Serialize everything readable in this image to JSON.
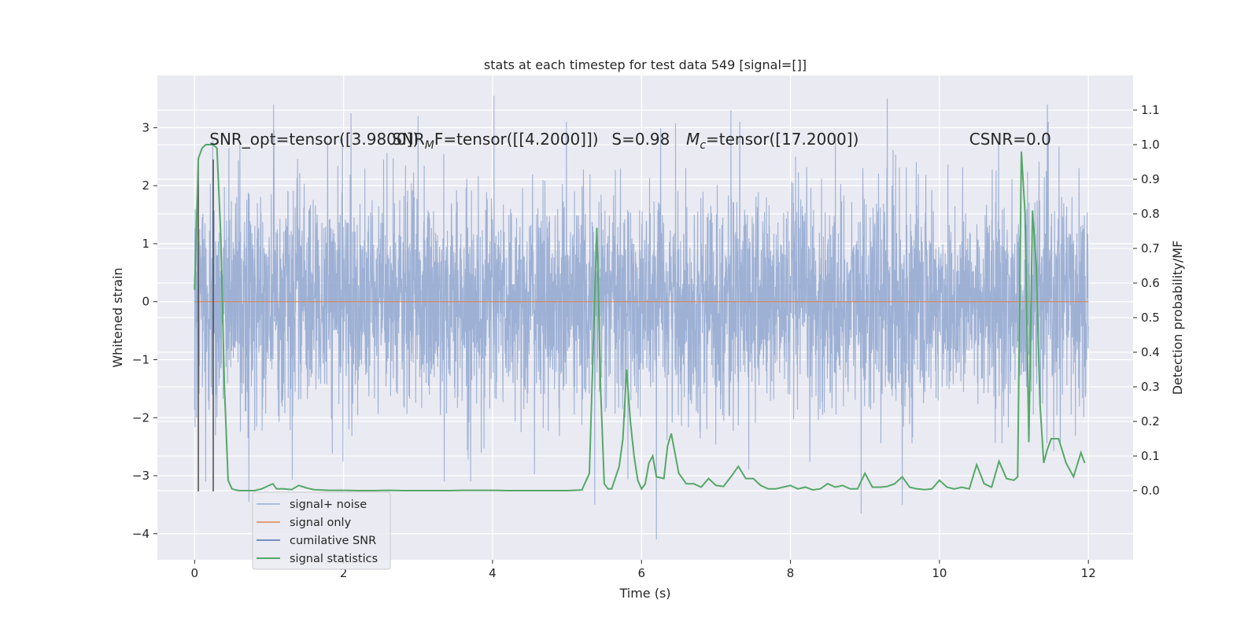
{
  "chart_data": {
    "type": "line",
    "title": "stats at each timestep for test data 549 [signal=[]]",
    "xlabel": "Time (s)",
    "ylabel": "Whitened strain",
    "y2label": "Detection probability/MF",
    "xlim": [
      -0.5,
      12.6
    ],
    "ylim": [
      -4.45,
      3.9
    ],
    "y2lim": [
      -0.2,
      1.2
    ],
    "grid": true,
    "x_ticks": [
      0,
      2,
      4,
      6,
      8,
      10,
      12
    ],
    "x_tick_labels": [
      "0",
      "2",
      "4",
      "6",
      "8",
      "10",
      "12"
    ],
    "y_ticks": [
      3,
      2,
      1,
      0,
      -1,
      -2,
      -3,
      -4
    ],
    "y_tick_labels": [
      "3",
      "2",
      "1",
      "0",
      "−1",
      "−2",
      "−3",
      "−4"
    ],
    "y2_ticks": [
      1.1,
      1.0,
      0.9,
      0.8,
      0.7,
      0.6,
      0.5,
      0.4,
      0.3,
      0.2,
      0.1,
      0.0
    ],
    "y2_tick_labels": [
      "1.1",
      "1.0",
      "0.9",
      "0.8",
      "0.7",
      "0.6",
      "0.5",
      "0.4",
      "0.3",
      "0.2",
      "0.1",
      "0.0"
    ],
    "annotations": [
      {
        "text": "SNR_opt=tensor([3.9800])",
        "x": 0.2,
        "y": 2.8
      },
      {
        "text": "SNR_MF=tensor([[4.2000]])",
        "x": 2.65,
        "y": 2.8
      },
      {
        "text": "S=0.98",
        "x": 5.6,
        "y": 2.8
      },
      {
        "text": "M_c=tensor([17.2000])",
        "x": 6.6,
        "y": 2.8
      },
      {
        "text": "CSNR=0.0",
        "x": 10.4,
        "y": 2.8
      }
    ],
    "legend": {
      "placement": "lower-left",
      "entries": [
        "signal+ noise",
        "signal only",
        "cumilative SNR",
        "signal statistics"
      ]
    },
    "series": [
      {
        "name": "signal+ noise",
        "axis": "left",
        "color": "#9aaed3",
        "description": "whitened noisy strain, dense random trace",
        "t_range": [
          0,
          12
        ],
        "band": [
          -2.3,
          2.3
        ],
        "spikes": [
          {
            "x": 1.06,
            "y": 3.4
          },
          {
            "x": 2.1,
            "y": 3.25
          },
          {
            "x": 3.0,
            "y": 3.2
          },
          {
            "x": 4.02,
            "y": 3.55
          },
          {
            "x": 7.2,
            "y": 3.3
          },
          {
            "x": 9.3,
            "y": 3.5
          },
          {
            "x": 11.45,
            "y": 3.4
          },
          {
            "x": 0.73,
            "y": -3.45
          },
          {
            "x": 6.2,
            "y": -4.1
          },
          {
            "x": 5.37,
            "y": -3.5
          },
          {
            "x": 8.95,
            "y": -3.65
          },
          {
            "x": 9.5,
            "y": -3.5
          },
          {
            "x": 0.15,
            "y": -3.1
          },
          {
            "x": 3.35,
            "y": -3.1
          }
        ]
      },
      {
        "name": "signal only",
        "axis": "left",
        "color": "#dd8452",
        "x": [
          0,
          12
        ],
        "y": [
          0,
          0
        ]
      },
      {
        "name": "cumilative SNR",
        "axis": "left",
        "color": "#4c72b0",
        "x": [],
        "y": []
      },
      {
        "name": "signal statistics",
        "axis": "right",
        "color": "#55a868",
        "x": [
          0.0,
          0.05,
          0.1,
          0.15,
          0.2,
          0.25,
          0.3,
          0.35,
          0.4,
          0.45,
          0.5,
          0.55,
          0.6,
          0.7,
          0.8,
          0.9,
          1.0,
          1.05,
          1.1,
          1.2,
          1.3,
          1.4,
          1.5,
          1.6,
          1.8,
          2.0,
          2.2,
          2.4,
          2.6,
          2.8,
          3.0,
          3.2,
          3.4,
          3.6,
          3.8,
          4.0,
          4.2,
          4.4,
          4.6,
          4.8,
          5.0,
          5.2,
          5.3,
          5.35,
          5.4,
          5.45,
          5.5,
          5.55,
          5.6,
          5.7,
          5.75,
          5.8,
          5.85,
          5.9,
          5.95,
          6.0,
          6.05,
          6.1,
          6.15,
          6.2,
          6.3,
          6.35,
          6.4,
          6.5,
          6.6,
          6.7,
          6.8,
          6.9,
          7.0,
          7.1,
          7.2,
          7.3,
          7.4,
          7.5,
          7.6,
          7.7,
          7.8,
          7.9,
          8.0,
          8.1,
          8.2,
          8.3,
          8.4,
          8.5,
          8.6,
          8.7,
          8.8,
          8.9,
          9.0,
          9.1,
          9.2,
          9.3,
          9.4,
          9.5,
          9.6,
          9.7,
          9.8,
          9.9,
          10.0,
          10.1,
          10.2,
          10.3,
          10.4,
          10.5,
          10.6,
          10.7,
          10.8,
          10.9,
          11.0,
          11.05,
          11.1,
          11.15,
          11.2,
          11.25,
          11.3,
          11.35,
          11.4,
          11.45,
          11.5,
          11.6,
          11.7,
          11.8,
          11.9,
          11.95
        ],
        "y": [
          0.58,
          0.96,
          0.99,
          1.0,
          1.0,
          1.0,
          0.99,
          0.74,
          0.3,
          0.03,
          0.005,
          0.002,
          0.0,
          0.0,
          0.0,
          0.005,
          0.015,
          0.02,
          0.005,
          0.005,
          0.003,
          0.015,
          0.008,
          0.003,
          0.001,
          0.001,
          0.0,
          0.0,
          0.001,
          0.0,
          0.0,
          0.0,
          0.0,
          0.001,
          0.001,
          0.001,
          0.0,
          0.0,
          0.0,
          0.0,
          0.0,
          0.002,
          0.05,
          0.4,
          0.76,
          0.3,
          0.02,
          0.005,
          0.005,
          0.07,
          0.15,
          0.35,
          0.2,
          0.1,
          0.03,
          0.005,
          0.02,
          0.08,
          0.1,
          0.04,
          0.035,
          0.13,
          0.165,
          0.05,
          0.02,
          0.02,
          0.01,
          0.035,
          0.015,
          0.012,
          0.04,
          0.07,
          0.035,
          0.035,
          0.015,
          0.005,
          0.005,
          0.01,
          0.015,
          0.005,
          0.01,
          0.002,
          0.005,
          0.02,
          0.01,
          0.015,
          0.005,
          0.005,
          0.05,
          0.01,
          0.01,
          0.012,
          0.02,
          0.04,
          0.01,
          0.005,
          0.003,
          0.005,
          0.03,
          0.01,
          0.005,
          0.01,
          0.005,
          0.075,
          0.02,
          0.01,
          0.085,
          0.035,
          0.03,
          0.04,
          0.98,
          0.8,
          0.14,
          0.81,
          0.65,
          0.25,
          0.08,
          0.12,
          0.15,
          0.15,
          0.08,
          0.04,
          0.11,
          0.08
        ]
      },
      {
        "name": "markers",
        "axis": "left",
        "color": "#4a4a4a",
        "description": "vertical marker lines",
        "x": [
          0.05,
          0.25
        ],
        "y_range": [
          -3.27,
          2.45
        ]
      }
    ]
  }
}
